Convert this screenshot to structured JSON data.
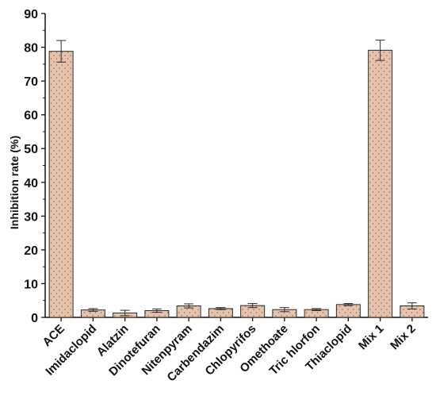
{
  "chart_data": {
    "type": "bar",
    "ylabel": "Inhibition rate (%)",
    "ylim": [
      0,
      90
    ],
    "yticks": [
      0,
      10,
      20,
      30,
      40,
      50,
      60,
      70,
      80,
      90
    ],
    "categories": [
      "ACE",
      "Imidaclopid",
      "Alatzin",
      "Dinotefuran",
      "Nitenpyram",
      "Carbendazim",
      "Chlopyrifos",
      "Omethoate",
      "Tric hlorfon",
      "Thiaclopid",
      "Mix 1",
      "Mix 2"
    ],
    "values": [
      78.8,
      2.2,
      1.3,
      2.0,
      3.4,
      2.6,
      3.5,
      2.3,
      2.3,
      3.8,
      79.1,
      3.4
    ],
    "errors": [
      3.2,
      0.4,
      0.8,
      0.5,
      0.6,
      0.3,
      0.6,
      0.6,
      0.3,
      0.3,
      3.0,
      0.9
    ],
    "bar_fill": "#e8c3ac",
    "bar_stroke": "#2a2a2a",
    "axis_color": "#111111",
    "grid": false
  }
}
